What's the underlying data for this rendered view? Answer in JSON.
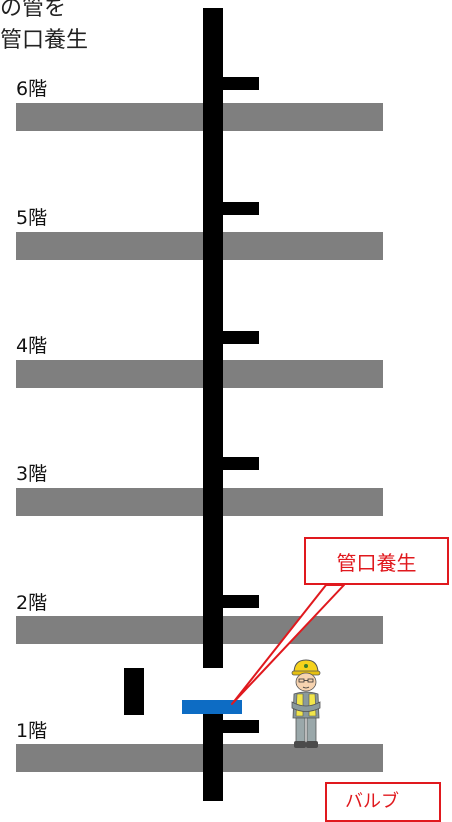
{
  "caption": {
    "line1": "部の管を",
    "line2": "し管口養生"
  },
  "floors": [
    {
      "label": "6階"
    },
    {
      "label": "5階"
    },
    {
      "label": "4階"
    },
    {
      "label": "3階"
    },
    {
      "label": "2階"
    },
    {
      "label": "1階"
    }
  ],
  "callouts": {
    "main": "管口養生",
    "secondary": "バルブ"
  },
  "colors": {
    "slab": "#7f7f7f",
    "pipe": "#000000",
    "cap": "#0d6cc4",
    "callout": "#e0191e"
  }
}
